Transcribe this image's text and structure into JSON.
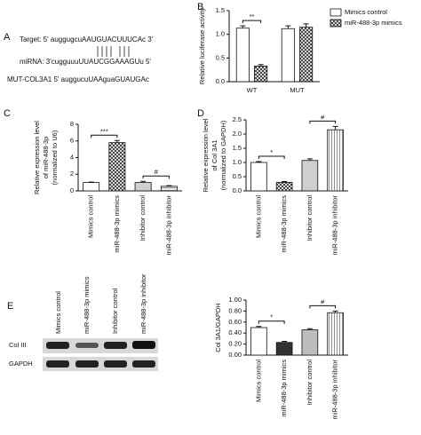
{
  "panel_labels": [
    "A",
    "B",
    "C",
    "D",
    "E"
  ],
  "sequences": {
    "target": "Target: 5' auggugcuAAUGUACUUUCAc 3'",
    "mirna": "miRNA: 3'cugguuuUUAUCGGAAAGUu 5'",
    "mutant": "MUT-COL3A1 5' auggucuUAAguaGUAUGAc"
  },
  "blot": {
    "lanes": [
      "Mimics control",
      "miR-488-3p mimics",
      "Inhibitor control",
      "miR-488-3p inhibitor"
    ],
    "rows": [
      "Col III",
      "GAPDH"
    ]
  },
  "chart_data": [
    {
      "type": "bar",
      "ylabel": [
        "Relative luciferase activity"
      ],
      "categories": [
        "WT",
        "MUT"
      ],
      "series": [
        {
          "name": "Mimics control",
          "color": "#ffffff",
          "values": [
            1.13,
            1.12
          ],
          "errors": [
            0.05,
            0.06
          ]
        },
        {
          "name": "miR-488-3p mimics",
          "color": "url(#cross)",
          "values": [
            0.33,
            1.15
          ],
          "errors": [
            0.03,
            0.07
          ]
        }
      ],
      "ylim": [
        0,
        1.5
      ],
      "yticks": [
        {
          "value": 0,
          "label": "0.0"
        },
        0.5,
        {
          "value": 1,
          "label": "1.0"
        },
        1.5
      ],
      "annotations": [
        "**"
      ]
    },
    {
      "type": "bar",
      "ylabel": [
        "Relative expression level",
        "of miR-488-3p",
        "(normalized to U6)"
      ],
      "categories": [
        "Mimics control",
        "miR-488-3p mimics",
        "Inhibitor control",
        "miR-488-3p inhibitor"
      ],
      "values": [
        1,
        5.8,
        1.0,
        0.55
      ],
      "errors": [
        0.05,
        0.25,
        0.15,
        0.08
      ],
      "colors": [
        "#ffffff",
        "url(#cross)",
        "#cfcfcf",
        "url(#hatch)"
      ],
      "ylim": [
        0,
        8
      ],
      "yticks": [
        0,
        2,
        4,
        6,
        8
      ],
      "annotations": [
        "***",
        "#"
      ]
    },
    {
      "type": "bar",
      "ylabel": [
        "Relative expression level",
        "of Col 3A1",
        "(normalized to GAPDH)"
      ],
      "categories": [
        "Mimics control",
        "miR-488-3p mimics",
        "Inhibitor control",
        "miR-488-3p inhibitor"
      ],
      "values": [
        1.0,
        0.3,
        1.07,
        2.15
      ],
      "errors": [
        0.03,
        0.03,
        0.06,
        0.12
      ],
      "colors": [
        "#ffffff",
        "url(#cross)",
        "#cfcfcf",
        "url(#vline)"
      ],
      "ylim": [
        0,
        2.5
      ],
      "yticks": [
        {
          "value": 0,
          "label": "0.0"
        },
        0.5,
        {
          "value": 1,
          "label": "1.0"
        },
        1.5,
        {
          "value": 2,
          "label": "2.0"
        },
        2.5
      ],
      "annotations": [
        "*",
        "#"
      ]
    },
    {
      "type": "bar",
      "ylabel": [
        "Col 3A1/GAPDH"
      ],
      "categories": [
        "Mimics control",
        "miR-488-3p mimics",
        "Inhibitor control",
        "miR-488-3p inhibitor"
      ],
      "values": [
        0.5,
        0.23,
        0.46,
        0.77
      ],
      "errors": [
        0.02,
        0.02,
        0.02,
        0.03
      ],
      "colors": [
        "#ffffff",
        "#333333",
        "#bdbdbd",
        "url(#vline)"
      ],
      "ylim": [
        0,
        1.0
      ],
      "yticks": [
        {
          "value": 0,
          "label": "0.00"
        },
        {
          "value": 0.2,
          "label": "0.20"
        },
        {
          "value": 0.4,
          "label": "0.40"
        },
        {
          "value": 0.6,
          "label": "0.60"
        },
        {
          "value": 0.8,
          "label": "0.80"
        },
        {
          "value": 1,
          "label": "1.00"
        }
      ],
      "annotations": [
        "*",
        "#"
      ]
    }
  ]
}
